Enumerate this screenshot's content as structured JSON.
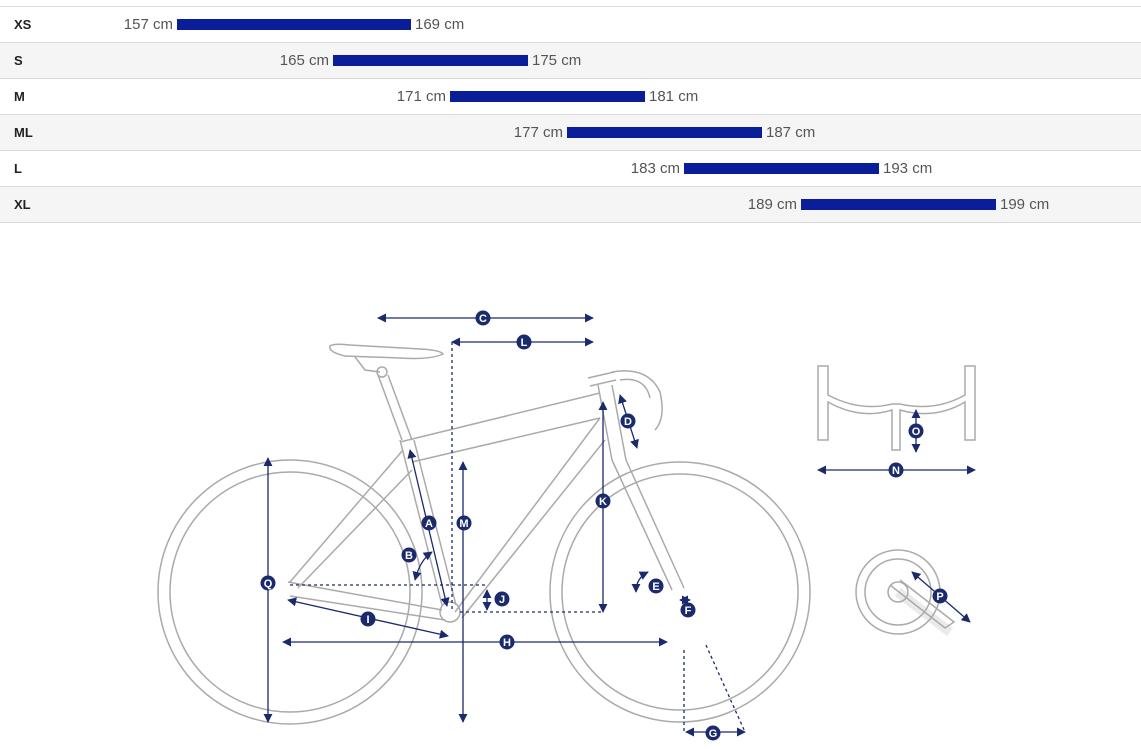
{
  "chart_data": {
    "type": "bar",
    "orientation": "horizontal-range",
    "unit": "cm",
    "categories": [
      "XS",
      "S",
      "M",
      "ML",
      "L",
      "XL"
    ],
    "ranges": [
      {
        "size": "XS",
        "low": 157,
        "high": 169,
        "low_label": "157 cm",
        "high_label": "169 cm"
      },
      {
        "size": "S",
        "low": 165,
        "high": 175,
        "low_label": "165 cm",
        "high_label": "175 cm"
      },
      {
        "size": "M",
        "low": 171,
        "high": 181,
        "low_label": "171 cm",
        "high_label": "181 cm"
      },
      {
        "size": "ML",
        "low": 177,
        "high": 187,
        "low_label": "177 cm",
        "high_label": "187 cm"
      },
      {
        "size": "L",
        "low": 183,
        "high": 193,
        "low_label": "183 cm",
        "high_label": "193 cm"
      },
      {
        "size": "XL",
        "low": 189,
        "high": 199,
        "low_label": "189 cm",
        "high_label": "199 cm"
      }
    ],
    "bar_color": "#0a1e99"
  },
  "diagram": {
    "measurement_labels": [
      "A",
      "B",
      "C",
      "D",
      "E",
      "F",
      "G",
      "H",
      "I",
      "J",
      "K",
      "L",
      "M",
      "N",
      "O",
      "P",
      "Q"
    ],
    "marker_color": "#1a2a6c",
    "line_color": "#aaaaaa"
  }
}
